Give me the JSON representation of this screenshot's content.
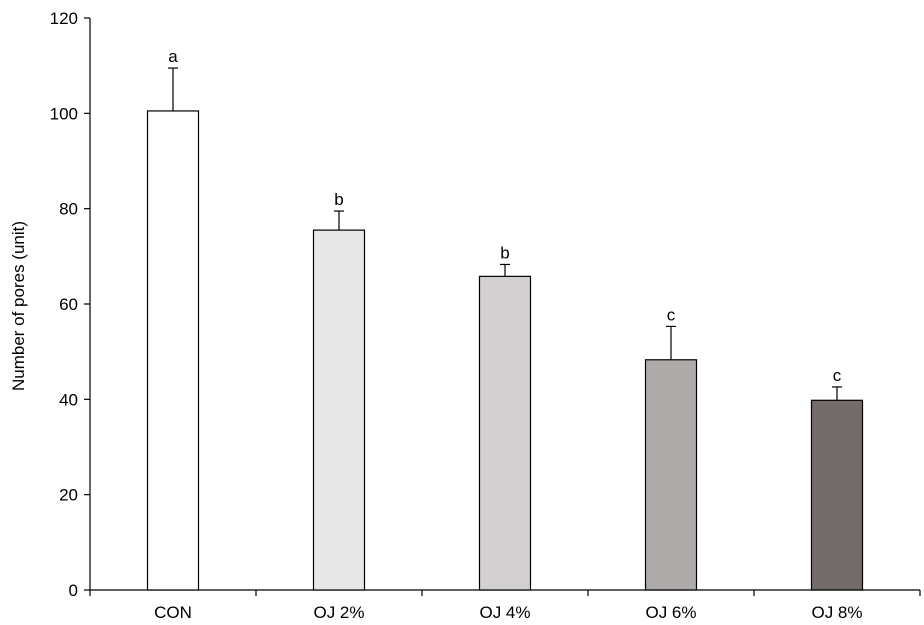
{
  "chart_data": {
    "type": "bar",
    "title": "",
    "xlabel": "",
    "ylabel": "Number of pores (unit)",
    "ylim": [
      0,
      120
    ],
    "yticks": [
      0,
      20,
      40,
      60,
      80,
      100,
      120
    ],
    "grid": false,
    "categories": [
      "CON",
      "OJ 2%",
      "OJ 4%",
      "OJ 6%",
      "OJ 8%"
    ],
    "values": [
      100.5,
      75.5,
      65.8,
      48.3,
      39.8
    ],
    "errors": [
      9,
      4,
      2.5,
      7,
      2.8
    ],
    "significance": [
      "a",
      "b",
      "b",
      "c",
      "c"
    ],
    "bar_colors": [
      "#ffffff",
      "#e8e7e7",
      "#d2d0d0",
      "#aeaaa9",
      "#736c6b"
    ]
  }
}
